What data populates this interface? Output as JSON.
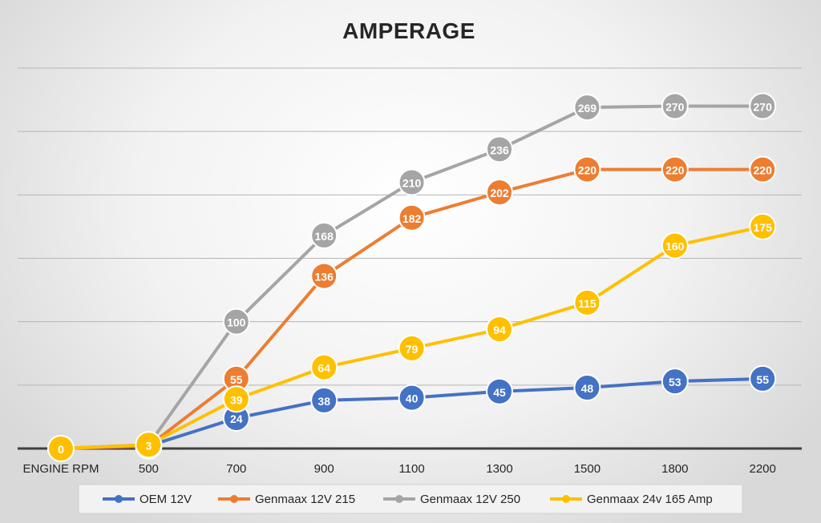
{
  "chart_data": {
    "type": "line",
    "title": "AMPERAGE",
    "xlabel": "",
    "ylabel": "",
    "categories": [
      "ENGINE RPM",
      "500",
      "700",
      "900",
      "1100",
      "1300",
      "1500",
      "1800",
      "2200"
    ],
    "ylim": [
      0,
      300
    ],
    "y_gridlines": [
      0,
      50,
      100,
      150,
      200,
      250,
      300
    ],
    "grid": true,
    "legend_position": "bottom",
    "series": [
      {
        "name": "OEM 12V",
        "color": "#4472c4",
        "values": [
          0,
          2,
          24,
          38,
          40,
          45,
          48,
          53,
          55
        ],
        "labels": [
          "0",
          "2",
          "24",
          "38",
          "40",
          "45",
          "48",
          "53",
          "55"
        ]
      },
      {
        "name": "Genmaax 12V 215",
        "color": "#ed7d31",
        "values": [
          0,
          2,
          55,
          136,
          182,
          202,
          220,
          220,
          220
        ],
        "labels": [
          "0",
          "2",
          "55",
          "136",
          "182",
          "202",
          "220",
          "220",
          "220"
        ]
      },
      {
        "name": "Genmaax 12V 250",
        "color": "#a5a5a5",
        "values": [
          0,
          3,
          100,
          168,
          210,
          236,
          269,
          270,
          270
        ],
        "labels": [
          "0",
          "3",
          "100",
          "168",
          "210",
          "236",
          "269",
          "270",
          "270"
        ]
      },
      {
        "name": "Genmaax 24v 165 Amp",
        "color": "#ffc000",
        "values": [
          0,
          3,
          39,
          64,
          79,
          94,
          115,
          160,
          175
        ],
        "labels": [
          "0",
          "3",
          "39",
          "64",
          "79",
          "94",
          "115",
          "160",
          "175"
        ]
      }
    ]
  }
}
